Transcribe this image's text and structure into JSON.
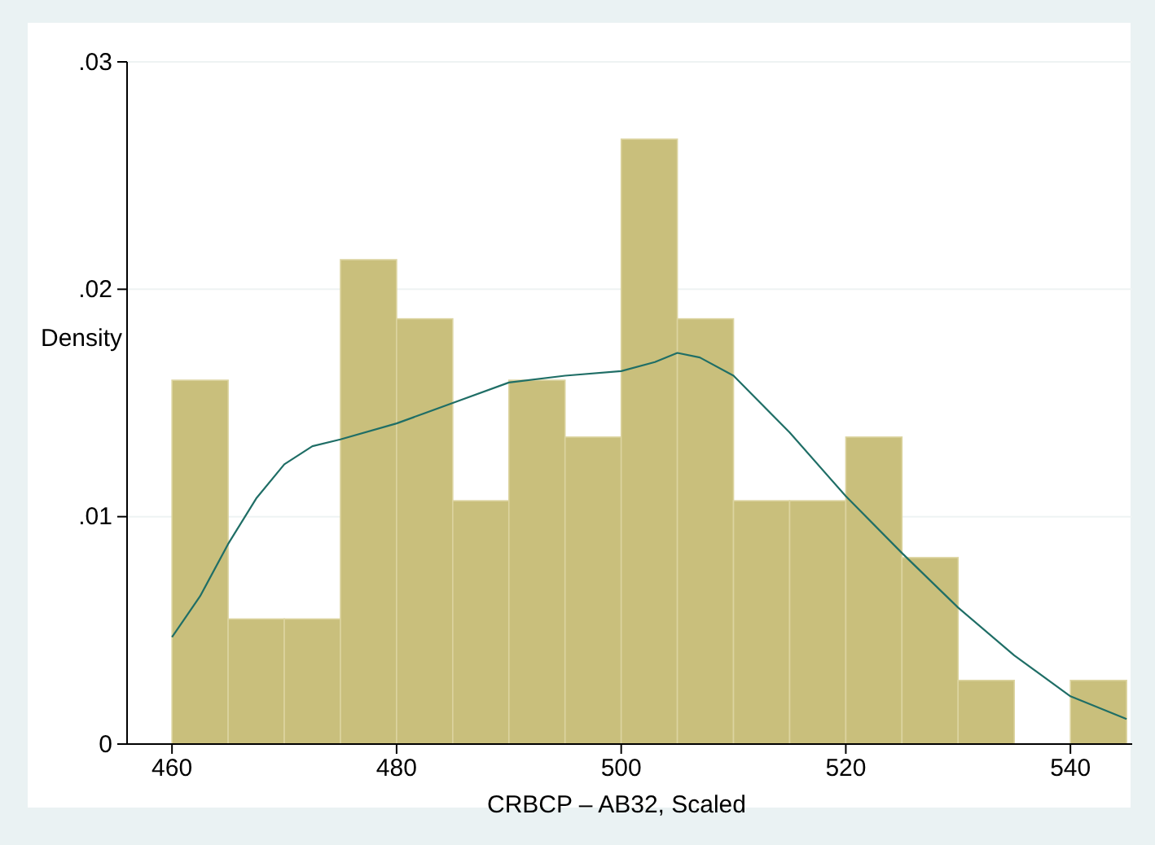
{
  "chart_data": {
    "type": "histogram",
    "xlabel": "CRBCP – AB32, Scaled",
    "ylabel": "Density",
    "series": [
      {
        "color": "#c9bf7c",
        "bins": [
          460,
          465,
          470,
          475,
          480,
          485,
          490,
          495,
          500,
          505,
          510,
          515,
          520,
          525,
          530,
          535,
          540,
          545
        ],
        "values": [
          0.016,
          0.0055,
          0.0055,
          0.0213,
          0.0187,
          0.0107,
          0.016,
          0.0135,
          0.0266,
          0.0187,
          0.0107,
          0.0107,
          0.0135,
          0.0082,
          0.0028,
          0,
          0.0028
        ]
      },
      {
        "type": "line",
        "color": "#1f6e66",
        "x": [
          460,
          462.5,
          465,
          467.5,
          470,
          472.5,
          475,
          480,
          485,
          490,
          495,
          500,
          503,
          505,
          507,
          510,
          515,
          520,
          525,
          530,
          535,
          540,
          545
        ],
        "values": [
          0.0047,
          0.0065,
          0.0088,
          0.0108,
          0.0123,
          0.0131,
          0.0134,
          0.0141,
          0.015,
          0.0159,
          0.0162,
          0.0164,
          0.0168,
          0.0172,
          0.017,
          0.0162,
          0.0137,
          0.0109,
          0.0084,
          0.006,
          0.0039,
          0.0021,
          0.0011
        ]
      }
    ],
    "xlim": [
      456,
      545.5
    ],
    "ylim": [
      0,
      0.03
    ],
    "xticks": [
      460,
      480,
      500,
      520,
      540
    ],
    "yticks": [
      0,
      {
        "value": 0.01,
        "label": ".01"
      },
      {
        "value": 0.02,
        "label": ".02"
      },
      {
        "value": 0.03,
        "label": ".03"
      }
    ],
    "grid": "y"
  }
}
